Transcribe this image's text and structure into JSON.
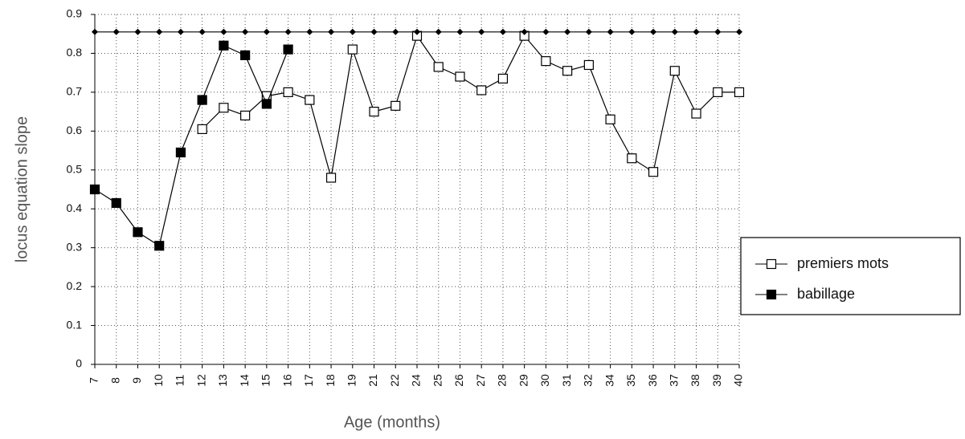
{
  "chart_data": {
    "type": "line",
    "x_label": "Age  (months)",
    "y_label": "locus equation slope",
    "categories": [
      "7",
      "8",
      "9",
      "10",
      "11",
      "12",
      "13",
      "14",
      "15",
      "16",
      "17",
      "18",
      "19",
      "21",
      "22",
      "24",
      "25",
      "26",
      "27",
      "28",
      "29",
      "30",
      "31",
      "32",
      "34",
      "35",
      "36",
      "37",
      "38",
      "39",
      "40"
    ],
    "series": [
      {
        "name": "premiers mots",
        "color": "#000000",
        "marker": "open-square",
        "values": [
          null,
          null,
          null,
          null,
          null,
          0.605,
          0.66,
          0.64,
          0.69,
          0.7,
          0.68,
          0.48,
          0.81,
          0.65,
          0.665,
          0.845,
          0.765,
          0.74,
          0.705,
          0.735,
          0.845,
          0.78,
          0.755,
          0.77,
          0.63,
          0.53,
          0.495,
          0.755,
          0.645,
          0.7,
          0.7
        ]
      },
      {
        "name": "babillage",
        "color": "#000000",
        "marker": "filled-square",
        "values": [
          0.45,
          0.415,
          0.34,
          0.305,
          0.545,
          0.68,
          0.82,
          0.795,
          0.67,
          0.81,
          null,
          null,
          null,
          null,
          null,
          null,
          null,
          null,
          null,
          null,
          null,
          null,
          null,
          null,
          null,
          null,
          null,
          null,
          null,
          null,
          null
        ]
      },
      {
        "color": "#000000",
        "marker": "diamond",
        "values": [
          0.855,
          0.855,
          0.855,
          0.855,
          0.855,
          0.855,
          0.855,
          0.855,
          0.855,
          0.855,
          0.855,
          0.855,
          0.855,
          0.855,
          0.855,
          0.855,
          0.855,
          0.855,
          0.855,
          0.855,
          0.855,
          0.855,
          0.855,
          0.855,
          0.855,
          0.855,
          0.855,
          0.855,
          0.855,
          0.855,
          0.855
        ]
      }
    ],
    "ylim": [
      0,
      0.9
    ],
    "yticks": [
      0,
      0.1,
      0.2,
      0.3,
      0.4,
      0.5,
      0.6,
      0.7,
      0.8,
      0.9
    ],
    "grid": true,
    "legend": "right"
  }
}
